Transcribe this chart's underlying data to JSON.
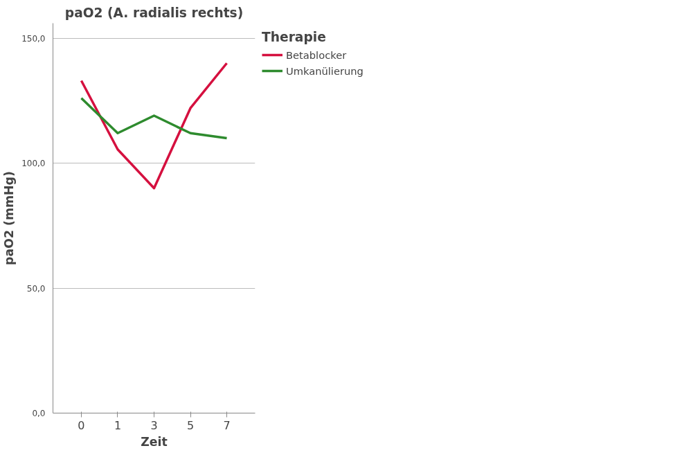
{
  "chart_data": {
    "type": "line",
    "title": "paO2 (A. radialis rechts)",
    "xlabel": "Zeit",
    "ylabel": "paO2 (mmHg)",
    "legend_title": "Therapie",
    "categories": [
      "0",
      "1",
      "3",
      "5",
      "7"
    ],
    "series": [
      {
        "name": "Betablocker",
        "color": "#d5103f",
        "values": [
          133,
          105.5,
          90,
          122,
          140
        ]
      },
      {
        "name": "Umkanülierung",
        "color": "#2e8b2e",
        "values": [
          126,
          112,
          119,
          112,
          110
        ]
      }
    ],
    "ylim": [
      0,
      156
    ],
    "yticks": [
      {
        "value": 0,
        "label": "0,0"
      },
      {
        "value": 50,
        "label": "50,0"
      },
      {
        "value": 100,
        "label": "100,0"
      },
      {
        "value": 150,
        "label": "150,0"
      }
    ],
    "grid": "y",
    "legend": "top right",
    "marker": "none",
    "line_style": "solid"
  }
}
